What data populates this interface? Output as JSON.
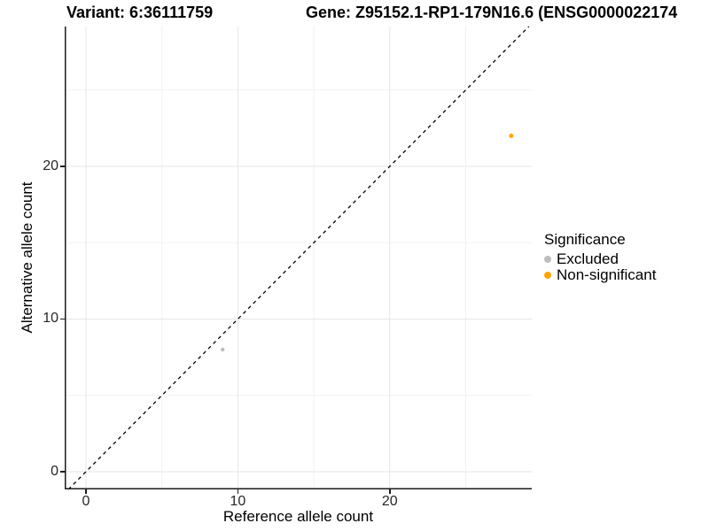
{
  "header": {
    "variant_title": "Variant: 6:36111759",
    "gene_title": "Gene: Z95152.1-RP1-179N16.6 (ENSG0000022174"
  },
  "chart_data": {
    "type": "scatter",
    "title_left": "Variant: 6:36111759",
    "title_right": "Gene: Z95152.1-RP1-179N16.6 (ENSG0000022174",
    "xlabel": "Reference allele count",
    "ylabel": "Alternative allele count",
    "xlim": [
      -1.4,
      29.35
    ],
    "ylim": [
      -1.16,
      29.16
    ],
    "x_ticks": [
      0,
      10,
      20
    ],
    "y_ticks": [
      0,
      10,
      20
    ],
    "x_minor_ticks": [
      5,
      15,
      25
    ],
    "y_minor_ticks": [
      5,
      15,
      25
    ],
    "grid": "on",
    "reference_line": {
      "equation": "y = x",
      "style": "dashed",
      "color": "#000000"
    },
    "series": [
      {
        "name": "Excluded",
        "color": "#BDBDBD",
        "marker_radius": 2.2,
        "points": [
          {
            "x": 9,
            "y": 8
          }
        ]
      },
      {
        "name": "Non-significant",
        "color": "#FFA500",
        "marker_radius": 2.5,
        "points": [
          {
            "x": 28,
            "y": 22
          }
        ]
      }
    ],
    "legend_position": "right"
  },
  "legend": {
    "title": "Significance",
    "items": [
      {
        "label": "Excluded",
        "color": "#BDBDBD"
      },
      {
        "label": "Non-significant",
        "color": "#FFA500"
      }
    ]
  },
  "colors": {
    "axis_line": "#1a1a1a",
    "grid_major": "#e6e6e6",
    "grid_minor": "#f2f2f2",
    "tick_text": "#262626",
    "background": "#ffffff"
  }
}
